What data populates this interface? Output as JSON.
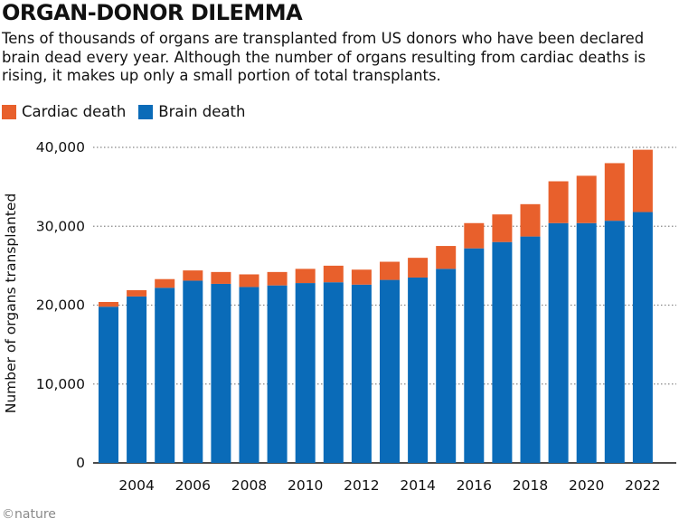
{
  "header": {
    "title": "ORGAN-DONOR DILEMMA",
    "subtitle": "Tens of thousands of organs are transplanted from US donors who have been declared brain dead every year. Although the number of organs resulting from cardiac deaths is rising, it makes up only a small portion of total transplants."
  },
  "legend": {
    "cardiac_label": "Cardiac death",
    "brain_label": "Brain death"
  },
  "credit": "©nature",
  "colors": {
    "cardiac": "#e8602c",
    "brain": "#0a6bb8",
    "grid": "#888888"
  },
  "chart_data": {
    "type": "bar",
    "stacked": true,
    "x": [
      2003,
      2004,
      2005,
      2006,
      2007,
      2008,
      2009,
      2010,
      2011,
      2012,
      2013,
      2014,
      2015,
      2016,
      2017,
      2018,
      2019,
      2020,
      2021,
      2022
    ],
    "x_tick_labels": [
      "2004",
      "2006",
      "2008",
      "2010",
      "2012",
      "2014",
      "2016",
      "2018",
      "2020",
      "2022"
    ],
    "series": [
      {
        "name": "Brain death",
        "values": [
          19800,
          21100,
          22200,
          23100,
          22700,
          22300,
          22500,
          22800,
          22900,
          22600,
          23200,
          23500,
          24600,
          27200,
          28000,
          28700,
          30400,
          30400,
          30700,
          31800
        ]
      },
      {
        "name": "Cardiac death",
        "values": [
          600,
          800,
          1100,
          1300,
          1500,
          1600,
          1700,
          1800,
          2100,
          1900,
          2300,
          2500,
          2900,
          3200,
          3500,
          4100,
          5300,
          6000,
          7300,
          7900
        ]
      }
    ],
    "ylabel": "Number of organs transplanted",
    "y_tick_labels": [
      "0",
      "10,000",
      "20,000",
      "30,000",
      "40,000"
    ],
    "ylim": [
      0,
      40000
    ],
    "grid": true
  }
}
